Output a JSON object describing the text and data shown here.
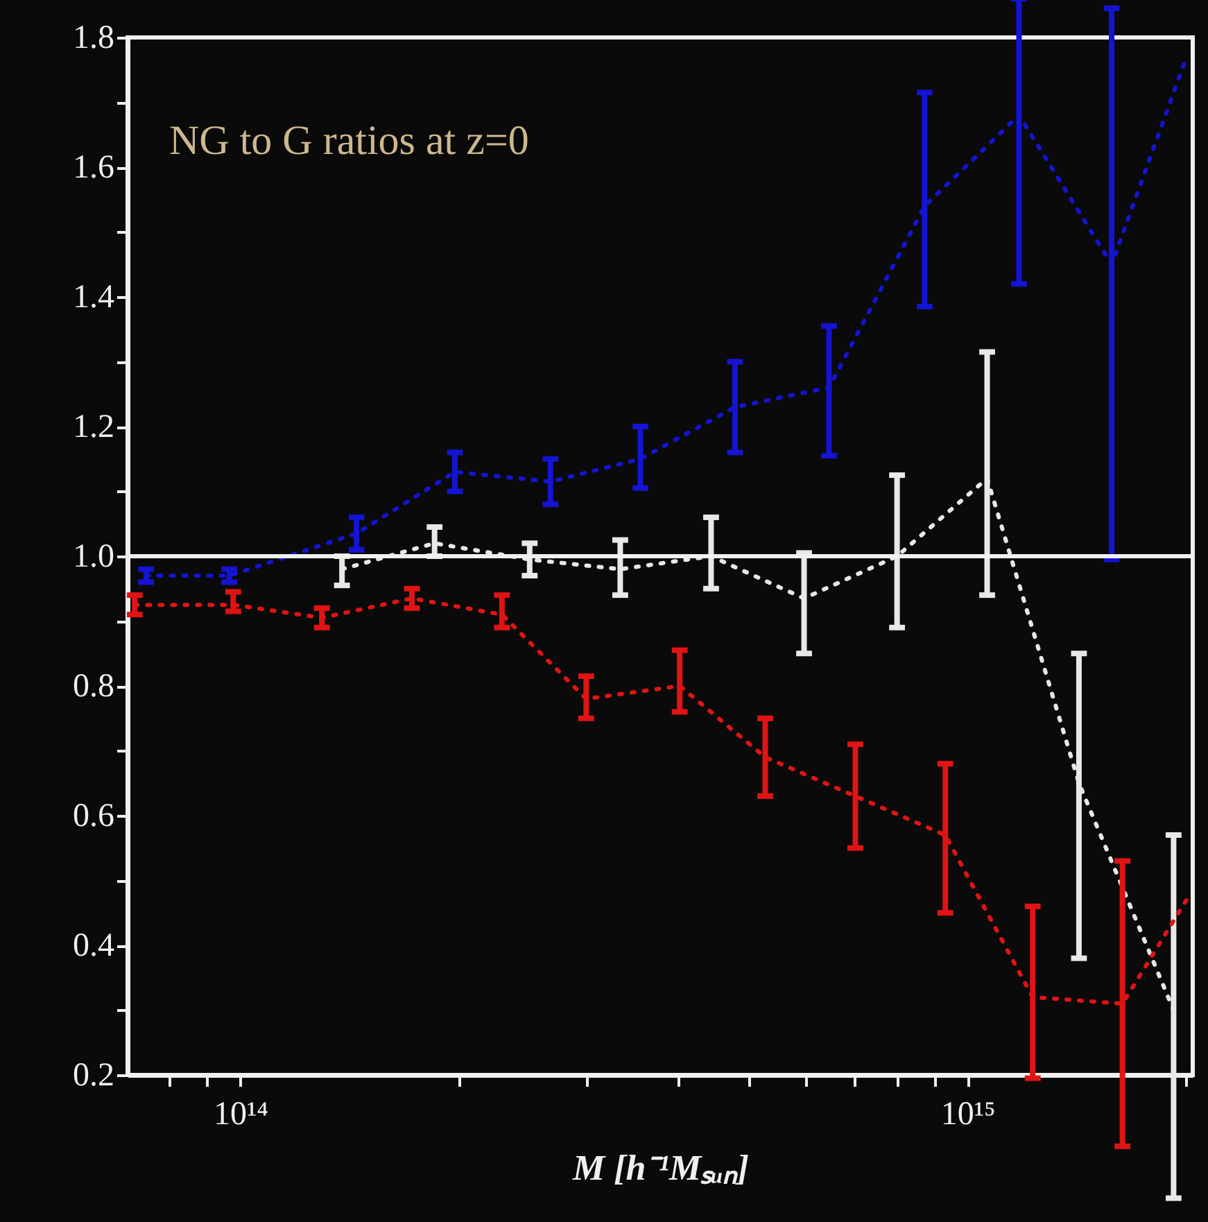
{
  "chart_data": {
    "type": "line",
    "xlabel": "M [h⁻¹Mₛᵤₙ]",
    "annotations": [
      "NG to G ratios at z=0"
    ],
    "log": "x",
    "grid": false,
    "marker": "none",
    "line_style": "dotted",
    "xlim": [
      70000000000000.0,
      2040000000000000.0
    ],
    "xticks": [
      {
        "value": 80000000000000.0,
        "label": null
      },
      {
        "value": 90000000000000.0,
        "label": null
      },
      {
        "value": 100000000000000.0,
        "label": "10¹⁴"
      },
      {
        "value": 200000000000000.0,
        "label": null
      },
      {
        "value": 300000000000000.0,
        "label": null
      },
      {
        "value": 400000000000000.0,
        "label": null
      },
      {
        "value": 500000000000000.0,
        "label": null
      },
      {
        "value": 600000000000000.0,
        "label": null
      },
      {
        "value": 700000000000000.0,
        "label": null
      },
      {
        "value": 800000000000000.0,
        "label": null
      },
      {
        "value": 900000000000000.0,
        "label": null
      },
      {
        "value": 1000000000000000.0,
        "label": "10¹⁵"
      },
      {
        "value": 2000000000000000.0,
        "label": null
      }
    ],
    "ylim": [
      0.2,
      1.8
    ],
    "yticks": [
      0.2,
      {
        "value": 0.3,
        "label": null
      },
      0.4,
      {
        "value": 0.5,
        "label": null
      },
      0.6,
      {
        "value": 0.7,
        "label": null
      },
      0.8,
      {
        "value": 0.9,
        "label": null
      },
      {
        "value": 1.0,
        "label": "1.0"
      },
      {
        "value": 1.1,
        "label": null
      },
      1.2,
      {
        "value": 1.3,
        "label": null
      },
      1.4,
      {
        "value": 1.5,
        "label": null
      },
      1.6,
      {
        "value": 1.7,
        "label": null
      },
      1.8
    ],
    "ref_lines": [
      {
        "axis": "y",
        "value": 1.0,
        "color": "#f0f0f0"
      }
    ],
    "series": [
      {
        "color": "#1414d2",
        "x": [
          74200000000000.0,
          96600000000000.0,
          144500000000000.0,
          197300000000000.0,
          267000000000000.0,
          355000000000000.0,
          479000000000000.0,
          645000000000000.0,
          873000000000000.0,
          1177000000000000.0,
          1578000000000000.0,
          2000000000000000.0
        ],
        "values": [
          0.97,
          0.97,
          1.035,
          1.13,
          1.115,
          1.15,
          1.23,
          1.26,
          1.54,
          1.68,
          1.45,
          1.77
        ],
        "errors": [
          [
            0.96,
            0.98
          ],
          [
            0.96,
            0.98
          ],
          [
            1.01,
            1.06
          ],
          [
            1.1,
            1.16
          ],
          [
            1.08,
            1.15
          ],
          [
            1.105,
            1.2
          ],
          [
            1.16,
            1.3
          ],
          [
            1.155,
            1.355
          ],
          [
            1.385,
            1.715
          ],
          [
            1.42,
            1.86
          ],
          [
            0.995,
            1.845
          ],
          null
        ]
      },
      {
        "color": "#e8e8e8",
        "x": [
          138000000000000.0,
          185000000000000.0,
          250000000000000.0,
          333000000000000.0,
          444000000000000.0,
          596000000000000.0,
          800000000000000.0,
          1064000000000000.0,
          1423000000000000.0,
          1920000000000000.0
        ],
        "values": [
          0.98,
          1.02,
          0.995,
          0.98,
          1.0,
          0.935,
          1.0,
          1.12,
          0.65,
          0.3
        ],
        "errors": [
          [
            0.955,
            1.0
          ],
          [
            1.0,
            1.045
          ],
          [
            0.97,
            1.02
          ],
          [
            0.94,
            1.025
          ],
          [
            0.95,
            1.06
          ],
          [
            0.85,
            1.005
          ],
          [
            0.89,
            1.125
          ],
          [
            0.94,
            1.315
          ],
          [
            0.38,
            0.85
          ],
          [
            0.01,
            0.57
          ]
        ]
      },
      {
        "color": "#e01414",
        "x": [
          71600000000000.0,
          97800000000000.0,
          129500000000000.0,
          172200000000000.0,
          229000000000000.0,
          299000000000000.0,
          402000000000000.0,
          527000000000000.0,
          701000000000000.0,
          932000000000000.0,
          1229000000000000.0,
          1633000000000000.0,
          2000000000000000.0
        ],
        "values": [
          0.925,
          0.925,
          0.905,
          0.935,
          0.91,
          0.78,
          0.8,
          0.69,
          0.63,
          0.57,
          0.32,
          0.31,
          0.47
        ],
        "errors": [
          [
            0.91,
            0.94
          ],
          [
            0.915,
            0.945
          ],
          [
            0.89,
            0.92
          ],
          [
            0.92,
            0.95
          ],
          [
            0.89,
            0.94
          ],
          [
            0.75,
            0.815
          ],
          [
            0.76,
            0.855
          ],
          [
            0.63,
            0.75
          ],
          [
            0.55,
            0.71
          ],
          [
            0.45,
            0.68
          ],
          [
            0.195,
            0.46
          ],
          [
            0.09,
            0.53
          ],
          null
        ]
      }
    ]
  }
}
